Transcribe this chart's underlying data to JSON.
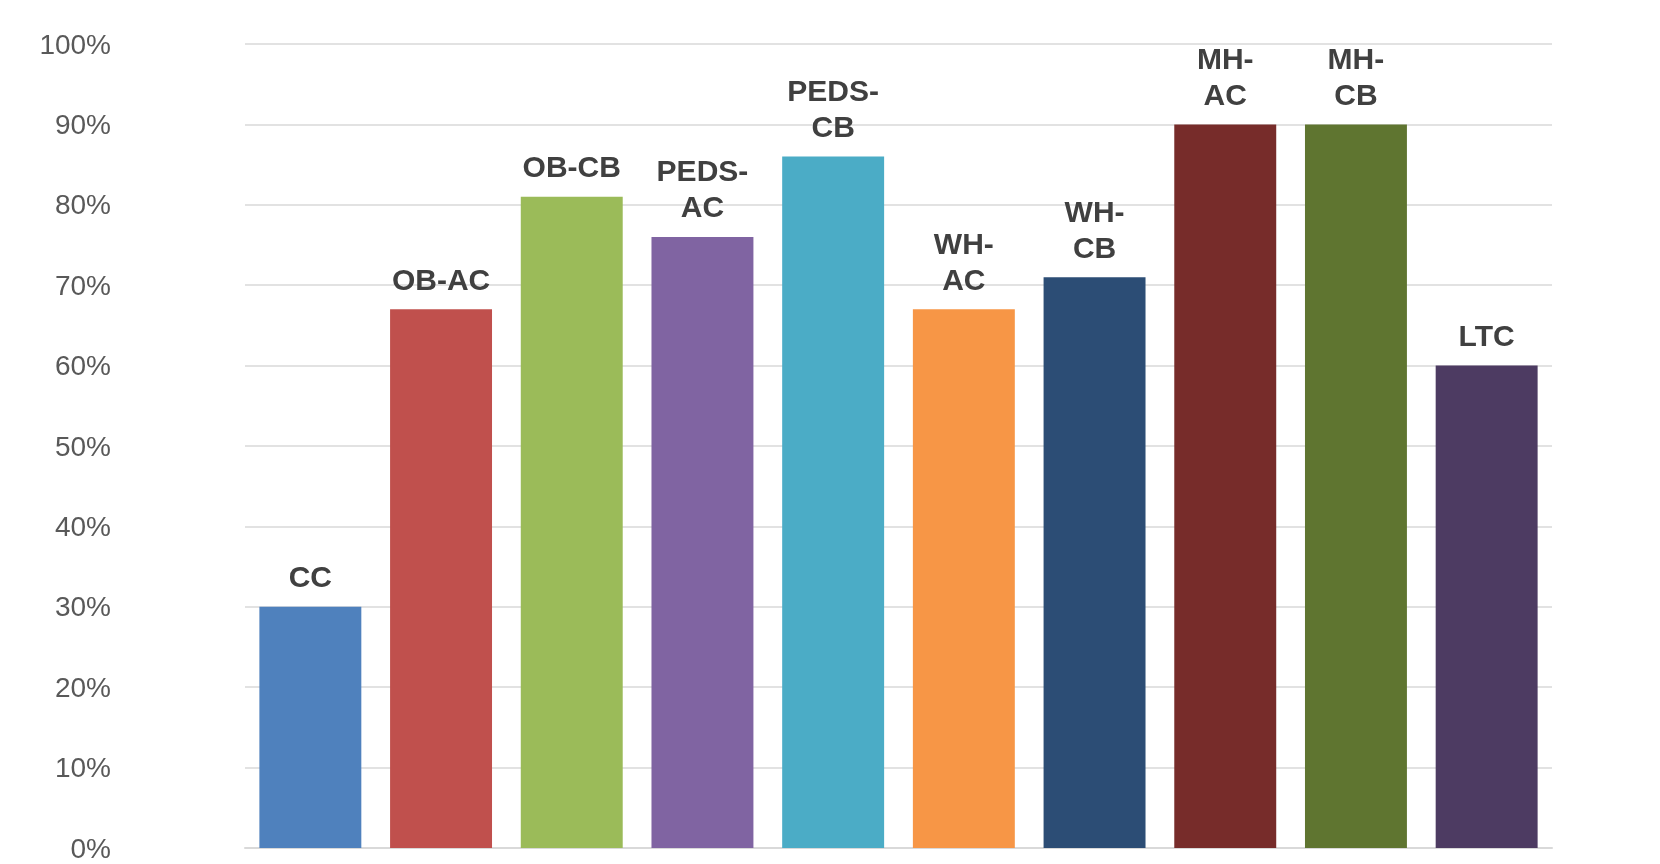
{
  "chart_data": {
    "type": "bar",
    "categories": [
      "CC",
      "OB-AC",
      "OB-CB",
      "PEDS-AC",
      "PEDS-CB",
      "WH-AC",
      "WH-CB",
      "MH-AC",
      "MH-CB",
      "LTC"
    ],
    "values": [
      30,
      67,
      81,
      76,
      86,
      67,
      71,
      90,
      90,
      60
    ],
    "colors": [
      "#4f81bd",
      "#c0504d",
      "#9bbb59",
      "#8064a2",
      "#4bacc6",
      "#f79646",
      "#2c4d75",
      "#772c2a",
      "#5f7530",
      "#4d3b62"
    ],
    "ylim": [
      0,
      100
    ],
    "yticks": [
      {
        "value": 0,
        "label": "0%"
      },
      {
        "value": 10,
        "label": "10%"
      },
      {
        "value": 20,
        "label": "20%"
      },
      {
        "value": 30,
        "label": "30%"
      },
      {
        "value": 40,
        "label": "40%"
      },
      {
        "value": 50,
        "label": "50%"
      },
      {
        "value": 60,
        "label": "60%"
      },
      {
        "value": 70,
        "label": "70%"
      },
      {
        "value": 80,
        "label": "80%"
      },
      {
        "value": 90,
        "label": "90%"
      },
      {
        "value": 100,
        "label": "100%"
      }
    ],
    "grid": "y"
  }
}
